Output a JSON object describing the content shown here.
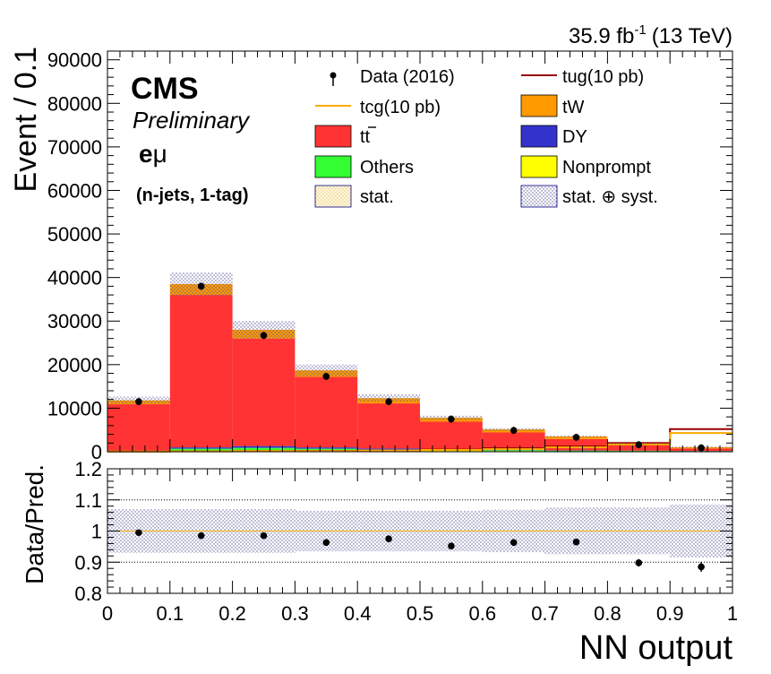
{
  "header": {
    "lumi": "35.9 fb",
    "lumi_exp": "-1",
    "energy": "(13 TeV)"
  },
  "labels": {
    "cms": "CMS",
    "preliminary": "Preliminary",
    "channel_e": "e",
    "channel_mu": "μ",
    "category": "(n-jets, 1-tag)"
  },
  "legend": {
    "data": "Data (2016)",
    "tug": "tug(10 pb)",
    "tcg": "tcg(10 pb)",
    "tw": "tW",
    "tt": "tt",
    "dy": "DY",
    "others": "Others",
    "nonprompt": "Nonprompt",
    "stat": "stat.",
    "statsyst": "stat. ⊕ syst."
  },
  "colors": {
    "tt": "#ff3333",
    "tw": "#ff9900",
    "dy": "#3333cc",
    "others": "#33ff33",
    "nonprompt": "#ffff00",
    "tcg": "#ffaa00",
    "tug": "#990000",
    "data": "#000000"
  },
  "chart_data": [
    {
      "type": "bar",
      "stacked": true,
      "xlabel": "NN output",
      "ylabel": "Event / 0.1",
      "xlim": [
        0,
        1
      ],
      "ylim": [
        0,
        92000
      ],
      "x_ticks": [
        "0",
        "0.1",
        "0.2",
        "0.3",
        "0.4",
        "0.5",
        "0.6",
        "0.7",
        "0.8",
        "0.9",
        "1"
      ],
      "y_ticks": [
        "0",
        "10000",
        "20000",
        "30000",
        "40000",
        "50000",
        "60000",
        "70000",
        "80000",
        "90000"
      ],
      "bin_edges": [
        0,
        0.1,
        0.2,
        0.3,
        0.4,
        0.5,
        0.6,
        0.7,
        0.8,
        0.9,
        1.0
      ],
      "series": [
        {
          "name": "Nonprompt",
          "color_key": "nonprompt",
          "values": [
            100,
            300,
            400,
            300,
            250,
            200,
            150,
            100,
            80,
            60
          ]
        },
        {
          "name": "Others",
          "color_key": "others",
          "values": [
            100,
            400,
            500,
            400,
            300,
            250,
            200,
            150,
            120,
            100
          ]
        },
        {
          "name": "DY",
          "color_key": "dy",
          "values": [
            60,
            300,
            400,
            300,
            200,
            120,
            80,
            60,
            40,
            30
          ]
        },
        {
          "name": "tt",
          "color_key": "tt",
          "values": [
            10640,
            35000,
            24700,
            16200,
            10350,
            6330,
            4000,
            2600,
            1200,
            550
          ]
        },
        {
          "name": "tW",
          "color_key": "tw",
          "values": [
            900,
            2500,
            2000,
            1500,
            1200,
            900,
            700,
            600,
            400,
            300
          ]
        }
      ],
      "signals": [
        {
          "name": "tug(10 pb)",
          "color_key": "tug",
          "values": [
            50,
            100,
            150,
            200,
            300,
            500,
            800,
            1200,
            2000,
            5200
          ]
        },
        {
          "name": "tcg(10 pb)",
          "color_key": "tcg",
          "values": [
            40,
            80,
            120,
            150,
            250,
            400,
            600,
            1000,
            1700,
            4300
          ]
        }
      ],
      "data": {
        "name": "Data (2016)",
        "x": [
          0.05,
          0.15,
          0.25,
          0.35,
          0.45,
          0.55,
          0.65,
          0.75,
          0.85,
          0.95
        ],
        "values": [
          11500,
          38000,
          26700,
          17300,
          11500,
          7500,
          4900,
          3300,
          1600,
          900
        ]
      },
      "uncertainty_fraction": [
        0.07,
        0.07,
        0.07,
        0.07,
        0.07,
        0.07,
        0.07,
        0.08,
        0.08,
        0.1
      ]
    },
    {
      "type": "scatter",
      "xlabel": "NN output",
      "ylabel": "Data/Pred.",
      "xlim": [
        0,
        1
      ],
      "ylim": [
        0.8,
        1.2
      ],
      "y_ticks": [
        "0.8",
        "0.9",
        "1",
        "1.1",
        "1.2"
      ],
      "x": [
        0.05,
        0.15,
        0.25,
        0.35,
        0.45,
        0.55,
        0.65,
        0.75,
        0.85,
        0.95
      ],
      "values": [
        0.995,
        0.985,
        0.985,
        0.963,
        0.975,
        0.952,
        0.963,
        0.965,
        0.898,
        0.885
      ],
      "errors": [
        0.004,
        0.002,
        0.003,
        0.003,
        0.004,
        0.005,
        0.006,
        0.008,
        0.012,
        0.016
      ],
      "band": [
        0.07,
        0.07,
        0.07,
        0.065,
        0.065,
        0.065,
        0.068,
        0.075,
        0.075,
        0.085
      ]
    }
  ]
}
